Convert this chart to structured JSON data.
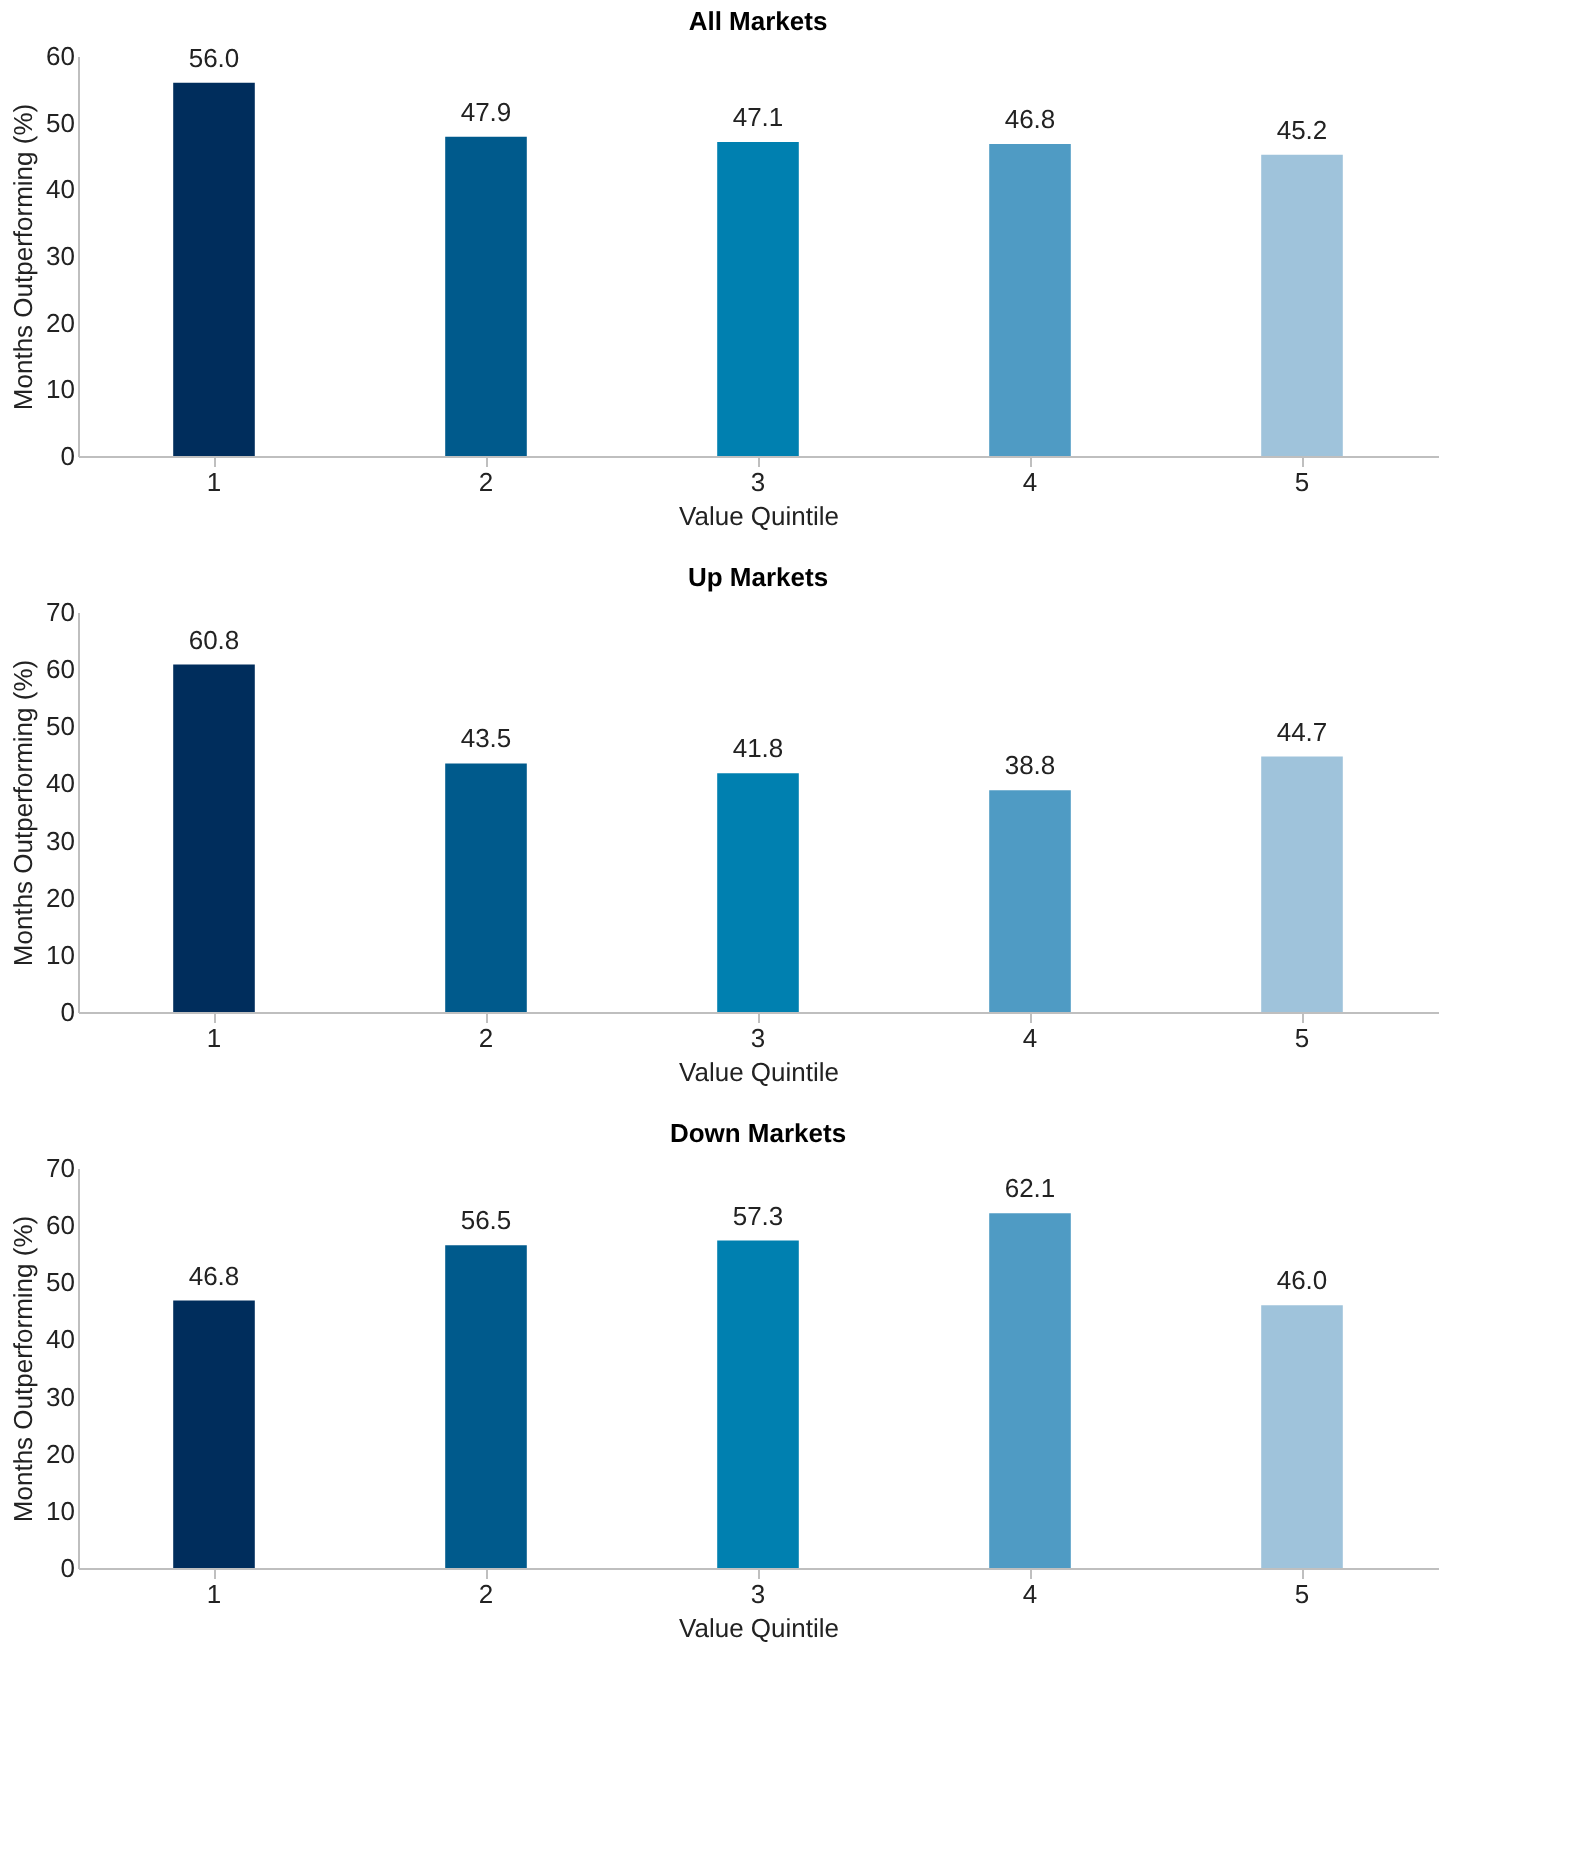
{
  "chart_data": [
    {
      "type": "bar",
      "title": "All Markets",
      "xlabel": "Value Quintile",
      "ylabel": "Months Outperforming (%)",
      "categories": [
        "1",
        "2",
        "3",
        "4",
        "5"
      ],
      "values": [
        56.0,
        47.9,
        47.1,
        46.8,
        45.2
      ],
      "value_labels": [
        "56.0",
        "47.9",
        "47.1",
        "46.8",
        "45.2"
      ],
      "colors": [
        "#002d5c",
        "#005a8c",
        "#0080b0",
        "#4f9bc4",
        "#9fc3db"
      ],
      "ylim": [
        0,
        60
      ],
      "yticks": [
        0,
        10,
        20,
        30,
        40,
        50,
        60
      ],
      "grid": false
    },
    {
      "type": "bar",
      "title": "Up Markets",
      "xlabel": "Value Quintile",
      "ylabel": "Months Outperforming (%)",
      "categories": [
        "1",
        "2",
        "3",
        "4",
        "5"
      ],
      "values": [
        60.8,
        43.5,
        41.8,
        38.8,
        44.7
      ],
      "value_labels": [
        "60.8",
        "43.5",
        "41.8",
        "38.8",
        "44.7"
      ],
      "colors": [
        "#002d5c",
        "#005a8c",
        "#0080b0",
        "#4f9bc4",
        "#9fc3db"
      ],
      "ylim": [
        0,
        70
      ],
      "yticks": [
        0,
        10,
        20,
        30,
        40,
        50,
        60,
        70
      ],
      "grid": false
    },
    {
      "type": "bar",
      "title": "Down Markets",
      "xlabel": "Value Quintile",
      "ylabel": "Months Outperforming (%)",
      "categories": [
        "1",
        "2",
        "3",
        "4",
        "5"
      ],
      "values": [
        46.8,
        56.5,
        57.3,
        62.1,
        46.0
      ],
      "value_labels": [
        "46.8",
        "56.5",
        "57.3",
        "62.1",
        "46.0"
      ],
      "colors": [
        "#002d5c",
        "#005a8c",
        "#0080b0",
        "#4f9bc4",
        "#9fc3db"
      ],
      "ylim": [
        0,
        70
      ],
      "yticks": [
        0,
        10,
        20,
        30,
        40,
        50,
        60,
        70
      ],
      "grid": false
    }
  ]
}
